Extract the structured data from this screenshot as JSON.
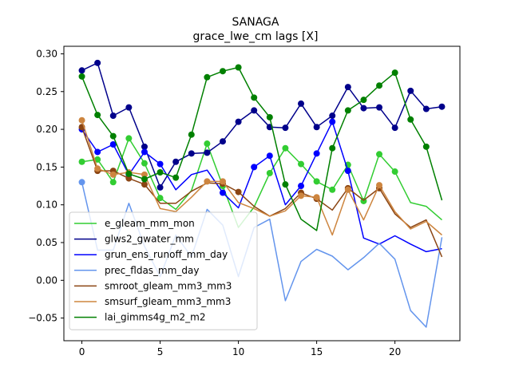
{
  "chart_data": {
    "type": "line",
    "title": "SANAGA",
    "subtitle": "grace_lwe_cm lags [X]",
    "xlabel": "",
    "ylabel": "",
    "xlim": [
      -1.15,
      24.15
    ],
    "ylim": [
      -0.08,
      0.31
    ],
    "x_ticks": [
      0,
      5,
      10,
      15,
      20
    ],
    "y_ticks": [
      -0.05,
      0.0,
      0.05,
      0.1,
      0.15,
      0.2,
      0.25,
      0.3
    ],
    "x_tick_labels": [
      "0",
      "5",
      "10",
      "15",
      "20"
    ],
    "y_tick_labels": [
      "−0.05",
      "0.00",
      "0.05",
      "0.10",
      "0.15",
      "0.20",
      "0.25",
      "0.30"
    ],
    "grid": false,
    "legend_position": "lower-left",
    "x": [
      0,
      1,
      2,
      3,
      4,
      5,
      6,
      7,
      8,
      9,
      10,
      11,
      12,
      13,
      14,
      15,
      16,
      17,
      18,
      19,
      20,
      21,
      22,
      23
    ],
    "series": [
      {
        "name": "e_gleam_mm_mon",
        "color": "#32cd32",
        "values": [
          0.157,
          0.16,
          0.13,
          0.188,
          0.155,
          0.109,
          0.094,
          0.119,
          0.181,
          0.125,
          0.07,
          0.097,
          0.142,
          0.175,
          0.154,
          0.131,
          0.12,
          0.153,
          0.105,
          0.167,
          0.144,
          0.103,
          0.098,
          0.08
        ],
        "markers": [
          0,
          1,
          2,
          3,
          4,
          5,
          8,
          9,
          12,
          13,
          14,
          15,
          16,
          17,
          18,
          19,
          20
        ]
      },
      {
        "name": "glws2_gwater_mm",
        "color": "#00008b",
        "values": [
          0.278,
          0.288,
          0.218,
          0.229,
          0.177,
          0.123,
          0.157,
          0.168,
          0.169,
          0.184,
          0.21,
          0.225,
          0.203,
          0.202,
          0.234,
          0.203,
          0.218,
          0.256,
          0.228,
          0.229,
          0.202,
          0.251,
          0.227,
          0.23
        ],
        "markers": [
          0,
          1,
          2,
          3,
          4,
          5,
          6,
          7,
          8,
          9,
          10,
          11,
          12,
          13,
          14,
          15,
          16,
          17,
          18,
          19,
          20,
          21,
          22,
          23
        ]
      },
      {
        "name": "grun_ens_runoff_mm_day",
        "color": "#0000ff",
        "values": [
          0.2,
          0.17,
          0.18,
          0.14,
          0.17,
          0.154,
          0.12,
          0.14,
          0.146,
          0.116,
          0.096,
          0.15,
          0.165,
          0.1,
          0.125,
          0.168,
          0.21,
          0.145,
          0.056,
          0.048,
          0.059,
          0.048,
          0.038,
          0.042
        ],
        "markers": [
          0,
          1,
          2,
          3,
          4,
          5,
          9,
          11,
          12,
          14,
          15,
          16,
          17
        ]
      },
      {
        "name": "prec_fldas_mm_day",
        "color": "#6495ed",
        "values": [
          0.13,
          0.04,
          0.04,
          0.102,
          0.045,
          0.005,
          0.06,
          0.031,
          0.094,
          0.073,
          0.005,
          0.07,
          0.081,
          -0.027,
          0.025,
          0.041,
          0.032,
          0.014,
          0.03,
          0.049,
          0.028,
          -0.04,
          -0.062,
          0.057
        ],
        "markers": [
          0
        ]
      },
      {
        "name": "smroot_gleam_mm3_mm3",
        "color": "#8b4513",
        "values": [
          0.203,
          0.145,
          0.145,
          0.135,
          0.127,
          0.102,
          0.102,
          0.118,
          0.129,
          0.128,
          0.117,
          0.098,
          0.085,
          0.095,
          0.116,
          0.108,
          0.093,
          0.122,
          0.106,
          0.122,
          0.088,
          0.07,
          0.08,
          0.031
        ],
        "markers": [
          0,
          1,
          2,
          3,
          4,
          9,
          10,
          14,
          15,
          17,
          19
        ]
      },
      {
        "name": "smsurf_gleam_mm3_mm3",
        "color": "#cd853f",
        "values": [
          0.212,
          0.148,
          0.14,
          0.143,
          0.14,
          0.095,
          0.091,
          0.11,
          0.131,
          0.131,
          0.103,
          0.095,
          0.085,
          0.092,
          0.112,
          0.11,
          0.06,
          0.12,
          0.08,
          0.126,
          0.091,
          0.068,
          0.078,
          0.06
        ],
        "markers": [
          0,
          1,
          2,
          3,
          4,
          8,
          9,
          14,
          15,
          17,
          19
        ]
      },
      {
        "name": "lai_gimms4g_m2_m2",
        "color": "#008000",
        "values": [
          0.27,
          0.219,
          0.191,
          0.141,
          0.134,
          0.143,
          0.136,
          0.193,
          0.269,
          0.277,
          0.282,
          0.242,
          0.216,
          0.127,
          0.081,
          0.066,
          0.175,
          0.225,
          0.239,
          0.258,
          0.275,
          0.213,
          0.177,
          0.106
        ],
        "markers": [
          0,
          1,
          2,
          3,
          4,
          5,
          6,
          7,
          8,
          9,
          10,
          11,
          12,
          13,
          16,
          17,
          18,
          19,
          20,
          21,
          22
        ]
      }
    ]
  }
}
